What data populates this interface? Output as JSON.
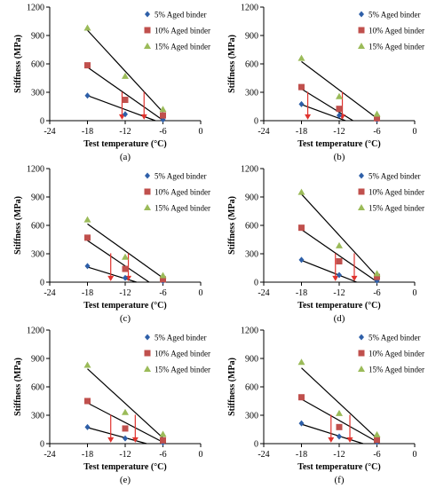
{
  "chart_data": [
    {
      "panel_label": "(a)",
      "type": "scatter",
      "xlabel": "Test temperature (°C)",
      "ylabel": "Stiffness (MPa)",
      "xlim": [
        -24,
        0
      ],
      "ylim": [
        0,
        1200
      ],
      "xticks": [
        "-24",
        "-18",
        "-12",
        "-6",
        "0"
      ],
      "yticks": [
        "0",
        "300",
        "600",
        "900",
        "1200"
      ],
      "legend_position": "top-right",
      "series": [
        {
          "name": "5% Aged binder",
          "marker": "diamond",
          "color": "#2e5fa8",
          "x": [
            -18,
            -12,
            -6
          ],
          "y": [
            265,
            68,
            10
          ]
        },
        {
          "name": "10% Aged binder",
          "marker": "square",
          "color": "#c0504d",
          "x": [
            -18,
            -12,
            -6
          ],
          "y": [
            585,
            220,
            55
          ]
        },
        {
          "name": "15% Aged binder",
          "marker": "triangle",
          "color": "#9bbb59",
          "x": [
            -18,
            -12,
            -6
          ],
          "y": [
            980,
            470,
            120
          ]
        }
      ],
      "trendlines": [
        {
          "x1": -18,
          "y1": 265,
          "x2": -7.2,
          "y2": 0
        },
        {
          "x1": -18,
          "y1": 565,
          "x2": -5.9,
          "y2": 0
        },
        {
          "x1": -18,
          "y1": 955,
          "x2": -6,
          "y2": 90
        }
      ],
      "arrows": [
        {
          "x": -12.5,
          "y_from": 305,
          "y_to": 10
        },
        {
          "x": -9,
          "y_from": 305,
          "y_to": 10
        }
      ]
    },
    {
      "panel_label": "(b)",
      "type": "scatter",
      "xlabel": "Test temperature (°C)",
      "ylabel": "Stiffness (MPa)",
      "xlim": [
        -24,
        0
      ],
      "ylim": [
        0,
        1200
      ],
      "xticks": [
        "-24",
        "-18",
        "-12",
        "-6",
        "0"
      ],
      "yticks": [
        "0",
        "300",
        "600",
        "900",
        "1200"
      ],
      "legend_position": "top-right",
      "series": [
        {
          "name": "5% Aged binder",
          "marker": "diamond",
          "color": "#2e5fa8",
          "x": [
            -18,
            -12,
            -6
          ],
          "y": [
            175,
            55,
            8
          ]
        },
        {
          "name": "10% Aged binder",
          "marker": "square",
          "color": "#c0504d",
          "x": [
            -18,
            -12,
            -6
          ],
          "y": [
            355,
            125,
            25
          ]
        },
        {
          "name": "15% Aged binder",
          "marker": "triangle",
          "color": "#9bbb59",
          "x": [
            -18,
            -12,
            -6
          ],
          "y": [
            660,
            255,
            70
          ]
        }
      ],
      "trendlines": [
        {
          "x1": -18,
          "y1": 170,
          "x2": -11,
          "y2": 0
        },
        {
          "x1": -18,
          "y1": 335,
          "x2": -9.8,
          "y2": 0
        },
        {
          "x1": -18,
          "y1": 625,
          "x2": -6,
          "y2": 25
        }
      ],
      "arrows": [
        {
          "x": -17,
          "y_from": 305,
          "y_to": 10
        },
        {
          "x": -11.5,
          "y_from": 305,
          "y_to": 10
        }
      ]
    },
    {
      "panel_label": "(c)",
      "type": "scatter",
      "xlabel": "Test temperature (°C)",
      "ylabel": "Stiffness (MPa)",
      "xlim": [
        -24,
        0
      ],
      "ylim": [
        0,
        1200
      ],
      "xticks": [
        "-24",
        "-18",
        "-12",
        "-6",
        "0"
      ],
      "yticks": [
        "0",
        "300",
        "600",
        "900",
        "1200"
      ],
      "legend_position": "top-right",
      "series": [
        {
          "name": "5% Aged binder",
          "marker": "diamond",
          "color": "#2e5fa8",
          "x": [
            -18,
            -12,
            -6
          ],
          "y": [
            170,
            45,
            10
          ]
        },
        {
          "name": "10% Aged binder",
          "marker": "square",
          "color": "#c0504d",
          "x": [
            -18,
            -12,
            -6
          ],
          "y": [
            470,
            140,
            30
          ]
        },
        {
          "name": "15% Aged binder",
          "marker": "triangle",
          "color": "#9bbb59",
          "x": [
            -18,
            -12,
            -6
          ],
          "y": [
            660,
            265,
            70
          ]
        }
      ],
      "trendlines": [
        {
          "x1": -18,
          "y1": 160,
          "x2": -10.2,
          "y2": 0
        },
        {
          "x1": -18,
          "y1": 440,
          "x2": -8.2,
          "y2": 0
        },
        {
          "x1": -18,
          "y1": 615,
          "x2": -6,
          "y2": 45
        }
      ],
      "arrows": [
        {
          "x": -14.3,
          "y_from": 305,
          "y_to": 10
        },
        {
          "x": -11.5,
          "y_from": 305,
          "y_to": 10
        }
      ]
    },
    {
      "panel_label": "(d)",
      "type": "scatter",
      "xlabel": "Test temperature (°C)",
      "ylabel": "Stiffness (MPa)",
      "xlim": [
        -24,
        0
      ],
      "ylim": [
        0,
        1200
      ],
      "xticks": [
        "-24",
        "-18",
        "-12",
        "-6",
        "0"
      ],
      "yticks": [
        "0",
        "300",
        "600",
        "900",
        "1200"
      ],
      "legend_position": "top-right",
      "series": [
        {
          "name": "5% Aged binder",
          "marker": "diamond",
          "color": "#2e5fa8",
          "x": [
            -18,
            -12,
            -6
          ],
          "y": [
            235,
            75,
            15
          ]
        },
        {
          "name": "10% Aged binder",
          "marker": "square",
          "color": "#c0504d",
          "x": [
            -18,
            -12,
            -6
          ],
          "y": [
            575,
            220,
            55
          ]
        },
        {
          "name": "15% Aged binder",
          "marker": "triangle",
          "color": "#9bbb59",
          "x": [
            -18,
            -12,
            -6
          ],
          "y": [
            950,
            385,
            90
          ]
        }
      ],
      "trendlines": [
        {
          "x1": -18,
          "y1": 230,
          "x2": -9.2,
          "y2": 0
        },
        {
          "x1": -18,
          "y1": 555,
          "x2": -5.9,
          "y2": 0
        },
        {
          "x1": -18,
          "y1": 930,
          "x2": -6,
          "y2": 60
        }
      ],
      "arrows": [
        {
          "x": -12.6,
          "y_from": 305,
          "y_to": 10
        },
        {
          "x": -9.6,
          "y_from": 305,
          "y_to": 10
        }
      ]
    },
    {
      "panel_label": "(e)",
      "type": "scatter",
      "xlabel": "Test temperature (°C)",
      "ylabel": "Stiffness (MPa)",
      "xlim": [
        -24,
        0
      ],
      "ylim": [
        0,
        1200
      ],
      "xticks": [
        "-24",
        "-18",
        "-12",
        "-6",
        "0"
      ],
      "yticks": [
        "0",
        "300",
        "600",
        "900",
        "1200"
      ],
      "legend_position": "top-right",
      "series": [
        {
          "name": "5% Aged binder",
          "marker": "diamond",
          "color": "#2e5fa8",
          "x": [
            -18,
            -12,
            -6
          ],
          "y": [
            175,
            55,
            10
          ]
        },
        {
          "name": "10% Aged binder",
          "marker": "square",
          "color": "#c0504d",
          "x": [
            -18,
            -12,
            -6
          ],
          "y": [
            450,
            160,
            35
          ]
        },
        {
          "name": "15% Aged binder",
          "marker": "triangle",
          "color": "#9bbb59",
          "x": [
            -18,
            -12,
            -6
          ],
          "y": [
            830,
            330,
            100
          ]
        }
      ],
      "trendlines": [
        {
          "x1": -18,
          "y1": 170,
          "x2": -8.6,
          "y2": 0
        },
        {
          "x1": -18,
          "y1": 430,
          "x2": -6,
          "y2": 15
        },
        {
          "x1": -18,
          "y1": 790,
          "x2": -6,
          "y2": 60
        }
      ],
      "arrows": [
        {
          "x": -14.3,
          "y_from": 305,
          "y_to": 10
        },
        {
          "x": -10.4,
          "y_from": 305,
          "y_to": 10
        }
      ]
    },
    {
      "panel_label": "(f)",
      "type": "scatter",
      "xlabel": "Test temperature (°C)",
      "ylabel": "Stiffness (MPa)",
      "xlim": [
        -24,
        0
      ],
      "ylim": [
        0,
        1200
      ],
      "xticks": [
        "-24",
        "-18",
        "-12",
        "-6",
        "0"
      ],
      "yticks": [
        "0",
        "300",
        "600",
        "900",
        "1200"
      ],
      "legend_position": "top-right",
      "series": [
        {
          "name": "5% Aged binder",
          "marker": "diamond",
          "color": "#2e5fa8",
          "x": [
            -18,
            -12,
            -6
          ],
          "y": [
            215,
            75,
            15
          ]
        },
        {
          "name": "10% Aged binder",
          "marker": "square",
          "color": "#c0504d",
          "x": [
            -18,
            -12,
            -6
          ],
          "y": [
            490,
            175,
            40
          ]
        },
        {
          "name": "15% Aged binder",
          "marker": "triangle",
          "color": "#9bbb59",
          "x": [
            -18,
            -12,
            -6
          ],
          "y": [
            860,
            320,
            95
          ]
        }
      ],
      "trendlines": [
        {
          "x1": -18,
          "y1": 205,
          "x2": -8.2,
          "y2": 0
        },
        {
          "x1": -18,
          "y1": 470,
          "x2": -6,
          "y2": 20
        },
        {
          "x1": -18,
          "y1": 800,
          "x2": -6,
          "y2": 55
        }
      ],
      "arrows": [
        {
          "x": -13.3,
          "y_from": 305,
          "y_to": 10
        },
        {
          "x": -10.3,
          "y_from": 305,
          "y_to": 10
        }
      ]
    }
  ]
}
